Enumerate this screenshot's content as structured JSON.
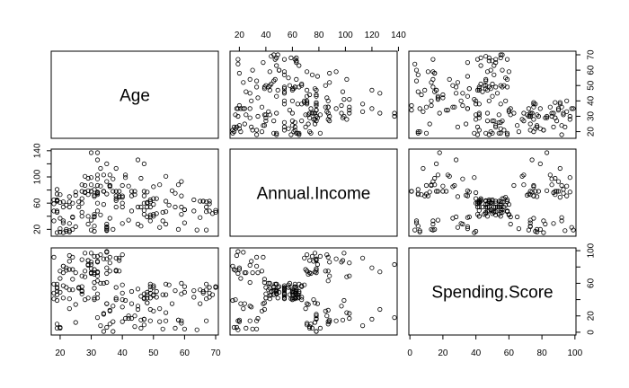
{
  "chart_data": {
    "type": "scatter",
    "layout": "pairs-matrix",
    "variables": [
      "Age",
      "Annual.Income",
      "Spending.Score"
    ],
    "axes": {
      "Age": {
        "range": [
          18,
          70
        ],
        "ticks": [
          20,
          30,
          40,
          50,
          60,
          70
        ]
      },
      "Annual.Income": {
        "range": [
          15,
          137
        ],
        "ticks": [
          20,
          40,
          60,
          80,
          100,
          120,
          140
        ],
        "left_ticks": [
          20,
          60,
          100,
          140
        ]
      },
      "Spending.Score": {
        "range": [
          1,
          99
        ],
        "ticks": [
          0,
          20,
          40,
          60,
          80,
          100
        ],
        "right_ticks": [
          0,
          20,
          60,
          100
        ]
      }
    },
    "tick_placement": {
      "Age": [
        "bottom",
        "right"
      ],
      "Annual.Income": [
        "top",
        "left"
      ],
      "Spending.Score": [
        "bottom",
        "right"
      ]
    },
    "rows": [
      [
        19,
        15,
        39
      ],
      [
        21,
        15,
        81
      ],
      [
        20,
        16,
        6
      ],
      [
        23,
        16,
        77
      ],
      [
        31,
        17,
        40
      ],
      [
        22,
        17,
        76
      ],
      [
        35,
        18,
        6
      ],
      [
        23,
        18,
        94
      ],
      [
        64,
        19,
        3
      ],
      [
        30,
        19,
        72
      ],
      [
        67,
        19,
        14
      ],
      [
        35,
        19,
        99
      ],
      [
        58,
        20,
        15
      ],
      [
        24,
        20,
        77
      ],
      [
        37,
        20,
        13
      ],
      [
        22,
        20,
        79
      ],
      [
        35,
        21,
        35
      ],
      [
        20,
        21,
        66
      ],
      [
        52,
        23,
        29
      ],
      [
        35,
        23,
        98
      ],
      [
        35,
        24,
        35
      ],
      [
        25,
        24,
        73
      ],
      [
        46,
        25,
        5
      ],
      [
        31,
        25,
        73
      ],
      [
        54,
        28,
        14
      ],
      [
        29,
        28,
        82
      ],
      [
        45,
        28,
        32
      ],
      [
        35,
        28,
        61
      ],
      [
        40,
        29,
        31
      ],
      [
        23,
        29,
        87
      ],
      [
        60,
        30,
        4
      ],
      [
        21,
        30,
        73
      ],
      [
        53,
        33,
        4
      ],
      [
        18,
        33,
        92
      ],
      [
        49,
        33,
        14
      ],
      [
        21,
        33,
        81
      ],
      [
        42,
        34,
        17
      ],
      [
        30,
        34,
        73
      ],
      [
        36,
        37,
        26
      ],
      [
        20,
        37,
        75
      ],
      [
        65,
        38,
        35
      ],
      [
        24,
        38,
        92
      ],
      [
        48,
        39,
        36
      ],
      [
        31,
        39,
        61
      ],
      [
        49,
        39,
        28
      ],
      [
        24,
        39,
        65
      ],
      [
        50,
        40,
        55
      ],
      [
        27,
        40,
        47
      ],
      [
        29,
        40,
        42
      ],
      [
        31,
        40,
        42
      ],
      [
        49,
        42,
        52
      ],
      [
        33,
        42,
        60
      ],
      [
        31,
        43,
        54
      ],
      [
        59,
        43,
        60
      ],
      [
        50,
        43,
        45
      ],
      [
        47,
        43,
        41
      ],
      [
        51,
        44,
        50
      ],
      [
        69,
        44,
        46
      ],
      [
        27,
        46,
        51
      ],
      [
        53,
        46,
        46
      ],
      [
        70,
        46,
        56
      ],
      [
        19,
        46,
        55
      ],
      [
        67,
        47,
        52
      ],
      [
        54,
        47,
        59
      ],
      [
        63,
        48,
        51
      ],
      [
        18,
        48,
        59
      ],
      [
        43,
        48,
        50
      ],
      [
        68,
        48,
        48
      ],
      [
        19,
        48,
        59
      ],
      [
        32,
        48,
        47
      ],
      [
        70,
        49,
        55
      ],
      [
        47,
        49,
        42
      ],
      [
        60,
        50,
        49
      ],
      [
        60,
        50,
        56
      ],
      [
        59,
        54,
        47
      ],
      [
        26,
        54,
        54
      ],
      [
        45,
        54,
        53
      ],
      [
        40,
        54,
        48
      ],
      [
        23,
        54,
        52
      ],
      [
        49,
        54,
        42
      ],
      [
        57,
        54,
        51
      ],
      [
        38,
        54,
        55
      ],
      [
        67,
        54,
        41
      ],
      [
        46,
        54,
        44
      ],
      [
        21,
        54,
        57
      ],
      [
        48,
        54,
        46
      ],
      [
        55,
        57,
        58
      ],
      [
        22,
        57,
        55
      ],
      [
        34,
        58,
        60
      ],
      [
        50,
        58,
        46
      ],
      [
        68,
        59,
        55
      ],
      [
        18,
        59,
        41
      ],
      [
        48,
        60,
        49
      ],
      [
        40,
        60,
        40
      ],
      [
        32,
        60,
        42
      ],
      [
        24,
        60,
        52
      ],
      [
        47,
        60,
        47
      ],
      [
        27,
        60,
        50
      ],
      [
        48,
        61,
        42
      ],
      [
        20,
        61,
        49
      ],
      [
        23,
        62,
        41
      ],
      [
        49,
        62,
        48
      ],
      [
        67,
        62,
        59
      ],
      [
        26,
        62,
        55
      ],
      [
        49,
        62,
        56
      ],
      [
        21,
        62,
        42
      ],
      [
        66,
        63,
        50
      ],
      [
        54,
        63,
        46
      ],
      [
        68,
        63,
        43
      ],
      [
        66,
        63,
        48
      ],
      [
        65,
        63,
        52
      ],
      [
        19,
        63,
        54
      ],
      [
        38,
        64,
        42
      ],
      [
        19,
        64,
        46
      ],
      [
        18,
        65,
        48
      ],
      [
        19,
        65,
        50
      ],
      [
        63,
        65,
        43
      ],
      [
        49,
        65,
        59
      ],
      [
        51,
        67,
        43
      ],
      [
        50,
        67,
        57
      ],
      [
        27,
        67,
        56
      ],
      [
        38,
        67,
        40
      ],
      [
        40,
        69,
        58
      ],
      [
        39,
        69,
        91
      ],
      [
        23,
        70,
        29
      ],
      [
        31,
        70,
        77
      ],
      [
        43,
        71,
        35
      ],
      [
        40,
        71,
        95
      ],
      [
        59,
        71,
        11
      ],
      [
        38,
        71,
        75
      ],
      [
        47,
        71,
        9
      ],
      [
        39,
        71,
        75
      ],
      [
        25,
        72,
        34
      ],
      [
        31,
        72,
        71
      ],
      [
        20,
        73,
        5
      ],
      [
        29,
        73,
        88
      ],
      [
        44,
        73,
        7
      ],
      [
        32,
        73,
        73
      ],
      [
        19,
        74,
        10
      ],
      [
        35,
        74,
        72
      ],
      [
        57,
        75,
        5
      ],
      [
        32,
        75,
        93
      ],
      [
        28,
        76,
        40
      ],
      [
        32,
        76,
        87
      ],
      [
        25,
        77,
        12
      ],
      [
        28,
        77,
        97
      ],
      [
        48,
        77,
        36
      ],
      [
        32,
        77,
        74
      ],
      [
        34,
        78,
        22
      ],
      [
        34,
        78,
        90
      ],
      [
        43,
        78,
        17
      ],
      [
        39,
        78,
        88
      ],
      [
        44,
        78,
        20
      ],
      [
        38,
        78,
        76
      ],
      [
        47,
        78,
        16
      ],
      [
        27,
        78,
        89
      ],
      [
        37,
        78,
        1
      ],
      [
        30,
        78,
        78
      ],
      [
        34,
        78,
        1
      ],
      [
        30,
        78,
        73
      ],
      [
        56,
        79,
        35
      ],
      [
        29,
        79,
        83
      ],
      [
        19,
        81,
        5
      ],
      [
        31,
        81,
        93
      ],
      [
        50,
        85,
        26
      ],
      [
        36,
        85,
        75
      ],
      [
        42,
        86,
        20
      ],
      [
        33,
        86,
        95
      ],
      [
        36,
        87,
        27
      ],
      [
        32,
        87,
        63
      ],
      [
        40,
        87,
        13
      ],
      [
        28,
        87,
        75
      ],
      [
        36,
        87,
        10
      ],
      [
        36,
        87,
        92
      ],
      [
        52,
        88,
        13
      ],
      [
        30,
        88,
        86
      ],
      [
        58,
        88,
        15
      ],
      [
        27,
        88,
        69
      ],
      [
        59,
        93,
        14
      ],
      [
        35,
        93,
        90
      ],
      [
        37,
        97,
        32
      ],
      [
        32,
        97,
        86
      ],
      [
        46,
        98,
        15
      ],
      [
        29,
        98,
        88
      ],
      [
        41,
        99,
        39
      ],
      [
        30,
        99,
        97
      ],
      [
        54,
        101,
        24
      ],
      [
        28,
        101,
        68
      ],
      [
        41,
        103,
        17
      ],
      [
        36,
        103,
        85
      ],
      [
        34,
        103,
        23
      ],
      [
        32,
        103,
        69
      ],
      [
        33,
        113,
        8
      ],
      [
        38,
        113,
        91
      ],
      [
        47,
        120,
        16
      ],
      [
        35,
        120,
        79
      ],
      [
        45,
        126,
        28
      ],
      [
        32,
        126,
        74
      ],
      [
        32,
        137,
        18
      ],
      [
        30,
        137,
        83
      ]
    ]
  }
}
